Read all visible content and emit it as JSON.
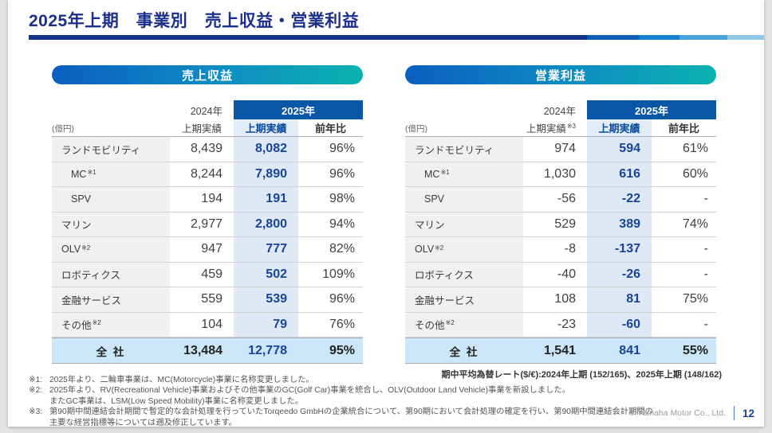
{
  "slide": {
    "title": "2025年上期　事業別　売上収益・営業利益",
    "copyright": "© Yamaha Motor Co., Ltd.",
    "page_number": "12"
  },
  "colors": {
    "title_navy": "#1b2e8c",
    "banner_blue": "#0b57a7",
    "pill_gradient_start": "#0b5fc0",
    "pill_gradient_end": "#0cb2ae",
    "highlight_column_bg": "#dfe9f5",
    "total_row_bg": "#cbe6f6",
    "value_navy": "#17449b"
  },
  "tables": [
    {
      "pill": "売上収益",
      "unit": "(億円)",
      "col2024_year": "2024年",
      "col2024_label": "上期実績",
      "col2024_sup": "",
      "col2025_year": "2025年",
      "col2025_sub1": "上期実績",
      "col2025_sub2": "前年比",
      "rows": [
        {
          "label": "ランドモビリティ",
          "sup": "",
          "indent": false,
          "v2024": "8,439",
          "v2025": "8,082",
          "yoy": "96%"
        },
        {
          "label": "MC",
          "sup": "※1",
          "indent": true,
          "v2024": "8,244",
          "v2025": "7,890",
          "yoy": "96%"
        },
        {
          "label": "SPV",
          "sup": "",
          "indent": true,
          "v2024": "194",
          "v2025": "191",
          "yoy": "98%"
        },
        {
          "label": "マリン",
          "sup": "",
          "indent": false,
          "v2024": "2,977",
          "v2025": "2,800",
          "yoy": "94%"
        },
        {
          "label": "OLV",
          "sup": "※2",
          "indent": false,
          "v2024": "947",
          "v2025": "777",
          "yoy": "82%"
        },
        {
          "label": "ロボティクス",
          "sup": "",
          "indent": false,
          "v2024": "459",
          "v2025": "502",
          "yoy": "109%"
        },
        {
          "label": "金融サービス",
          "sup": "",
          "indent": false,
          "v2024": "559",
          "v2025": "539",
          "yoy": "96%"
        },
        {
          "label": "その他",
          "sup": "※2",
          "indent": false,
          "v2024": "104",
          "v2025": "79",
          "yoy": "76%"
        }
      ],
      "total": {
        "label": "全 社",
        "v2024": "13,484",
        "v2025": "12,778",
        "yoy": "95%"
      }
    },
    {
      "pill": "営業利益",
      "unit": "(億円)",
      "col2024_year": "2024年",
      "col2024_label": "上期実績",
      "col2024_sup": "※3",
      "col2025_year": "2025年",
      "col2025_sub1": "上期実績",
      "col2025_sub2": "前年比",
      "rows": [
        {
          "label": "ランドモビリティ",
          "sup": "",
          "indent": false,
          "v2024": "974",
          "v2025": "594",
          "yoy": "61%"
        },
        {
          "label": "MC",
          "sup": "※1",
          "indent": true,
          "v2024": "1,030",
          "v2025": "616",
          "yoy": "60%"
        },
        {
          "label": "SPV",
          "sup": "",
          "indent": true,
          "v2024": "-56",
          "v2025": "-22",
          "yoy": "-"
        },
        {
          "label": "マリン",
          "sup": "",
          "indent": false,
          "v2024": "529",
          "v2025": "389",
          "yoy": "74%"
        },
        {
          "label": "OLV",
          "sup": "※2",
          "indent": false,
          "v2024": "-8",
          "v2025": "-137",
          "yoy": "-"
        },
        {
          "label": "ロボティクス",
          "sup": "",
          "indent": false,
          "v2024": "-40",
          "v2025": "-26",
          "yoy": "-"
        },
        {
          "label": "金融サービス",
          "sup": "",
          "indent": false,
          "v2024": "108",
          "v2025": "81",
          "yoy": "75%"
        },
        {
          "label": "その他",
          "sup": "※2",
          "indent": false,
          "v2024": "-23",
          "v2025": "-60",
          "yoy": "-"
        }
      ],
      "total": {
        "label": "全 社",
        "v2024": "1,541",
        "v2025": "841",
        "yoy": "55%"
      }
    }
  ],
  "fx_note": "期中平均為替レート($/€):2024年上期 (152/165)、2025年上期 (148/162)",
  "notes": [
    {
      "prefix": "※1:",
      "text": "2025年より、二輪車事業は、MC(Motorcycle)事業に名称変更しました。"
    },
    {
      "prefix": "※2:",
      "text": "2025年より、RV(Recreational Vehicle)事業およびその他事業のGC(Golf Car)事業を統合し、OLV(Outdoor Land Vehicle)事業を新設しました。"
    },
    {
      "prefix": "",
      "text": "またGC事業は、LSM(Low Speed Mobility)事業に名称変更しました。"
    },
    {
      "prefix": "※3:",
      "text": "第90期中間連結会計期間で暫定的な会計処理を行っていたTorqeedo GmbHの企業統合について、第90期において会計処理の確定を行い、第90期中間連結会計期間の"
    },
    {
      "prefix": "",
      "text": "主要な経営指標等については遡及修正しています。"
    }
  ]
}
